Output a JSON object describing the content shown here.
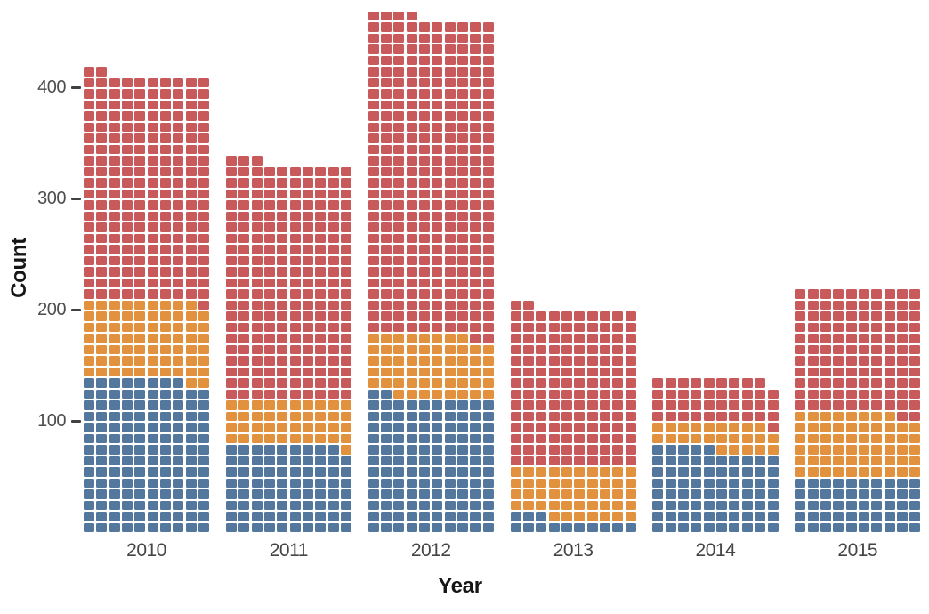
{
  "chart_data": {
    "type": "bar",
    "subtype": "waffle-stacked-bar",
    "title": "",
    "xlabel": "Year",
    "ylabel": "Count",
    "categories": [
      "2010",
      "2011",
      "2012",
      "2013",
      "2014",
      "2015"
    ],
    "series": [
      {
        "name": "blue",
        "color": "#54779E",
        "values": [
          138,
          79,
          122,
          13,
          75,
          50
        ]
      },
      {
        "name": "orange",
        "color": "#E2923E",
        "values": [
          71,
          41,
          56,
          47,
          24,
          58
        ]
      },
      {
        "name": "red",
        "color": "#C85A5C",
        "values": [
          203,
          213,
          286,
          142,
          40,
          112
        ]
      }
    ],
    "totals": [
      412,
      333,
      464,
      202,
      139,
      220
    ],
    "squares_per_row": 10,
    "unit_per_square": 1,
    "yticks": [
      100,
      200,
      300,
      400
    ],
    "ylim": [
      0,
      470
    ],
    "grid": false,
    "legend": "none",
    "background_color": "#FFFFFF",
    "tick_text_color": "#4d4d4d",
    "axis_title_color": "#161616"
  }
}
